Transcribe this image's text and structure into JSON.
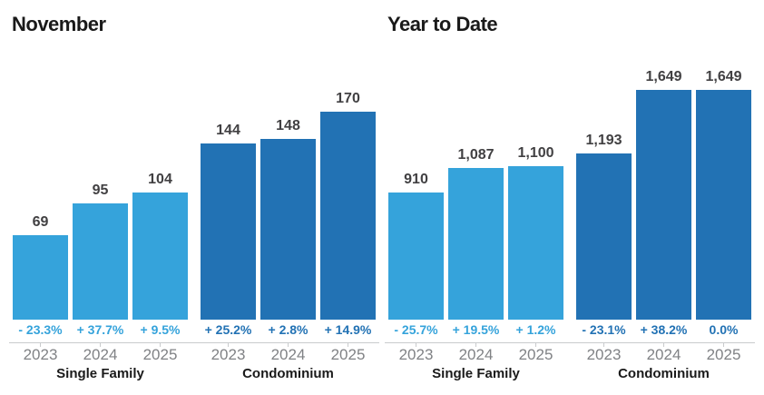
{
  "page": {
    "background": "#ffffff"
  },
  "colors": {
    "single_family_blue": "#35A3DB",
    "condominium_blue": "#2272B4",
    "axis_gray": "#C9CBCD",
    "year_text_gray": "#808285",
    "value_text": "#414042",
    "title_text": "#1A1A1A"
  },
  "chart_data": [
    {
      "type": "bar",
      "title": "November",
      "categories": [
        "2023",
        "2024",
        "2025"
      ],
      "xlabel": "",
      "ylabel": "",
      "ylim": [
        0,
        170
      ],
      "grid": false,
      "legend_position": "none",
      "value_labels_position": "above bars",
      "groups": [
        {
          "name": "Single Family",
          "color": "#35A3DB",
          "values": [
            69,
            95,
            104
          ],
          "value_labels": [
            "69",
            "95",
            "104"
          ],
          "pct_change_labels": [
            "- 23.3%",
            "+ 37.7%",
            "+ 9.5%"
          ],
          "pct_color": "#35A3DB"
        },
        {
          "name": "Condominium",
          "color": "#2272B4",
          "values": [
            144,
            148,
            170
          ],
          "value_labels": [
            "144",
            "148",
            "170"
          ],
          "pct_change_labels": [
            "+ 25.2%",
            "+ 2.8%",
            "+ 14.9%"
          ],
          "pct_color": "#2272B4"
        }
      ]
    },
    {
      "type": "bar",
      "title": "Year to Date",
      "categories": [
        "2023",
        "2024",
        "2025"
      ],
      "xlabel": "",
      "ylabel": "",
      "ylim": [
        0,
        1649
      ],
      "grid": false,
      "legend_position": "none",
      "value_labels_position": "above bars",
      "groups": [
        {
          "name": "Single Family",
          "color": "#35A3DB",
          "values": [
            910,
            1087,
            1100
          ],
          "value_labels": [
            "910",
            "1,087",
            "1,100"
          ],
          "pct_change_labels": [
            "- 25.7%",
            "+ 19.5%",
            "+ 1.2%"
          ],
          "pct_color": "#35A3DB"
        },
        {
          "name": "Condominium",
          "color": "#2272B4",
          "values": [
            1193,
            1649,
            1649
          ],
          "value_labels": [
            "1,193",
            "1,649",
            "1,649"
          ],
          "pct_change_labels": [
            "- 23.1%",
            "+ 38.2%",
            "0.0%"
          ],
          "pct_color": "#2272B4"
        }
      ]
    }
  ]
}
